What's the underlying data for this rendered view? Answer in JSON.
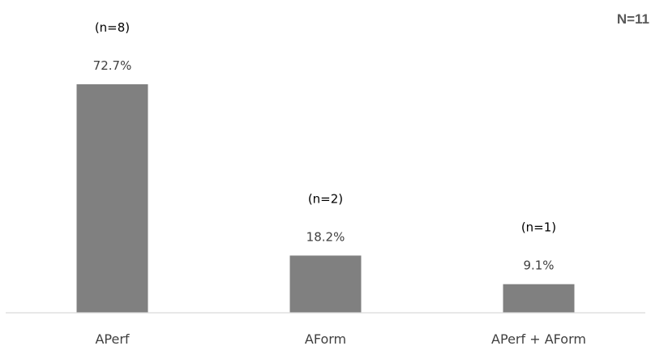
{
  "chart_data": {
    "type": "bar",
    "categories": [
      "APerf",
      "AForm",
      "APerf + AForm"
    ],
    "values": [
      72.7,
      18.2,
      9.1
    ],
    "value_labels": [
      "72.7%",
      "18.2%",
      "9.1%"
    ],
    "count_labels": [
      "(n=8)",
      "(n=2)",
      "(n=1)"
    ],
    "annotation": "N=11",
    "title": "",
    "xlabel": "",
    "ylabel": "",
    "ylim": [
      0,
      100
    ],
    "grid": false,
    "legend": "none",
    "colors": {
      "bar": "#808080",
      "axis": "#d9d9d9",
      "text": "#404040",
      "annotation": "#595959"
    }
  }
}
